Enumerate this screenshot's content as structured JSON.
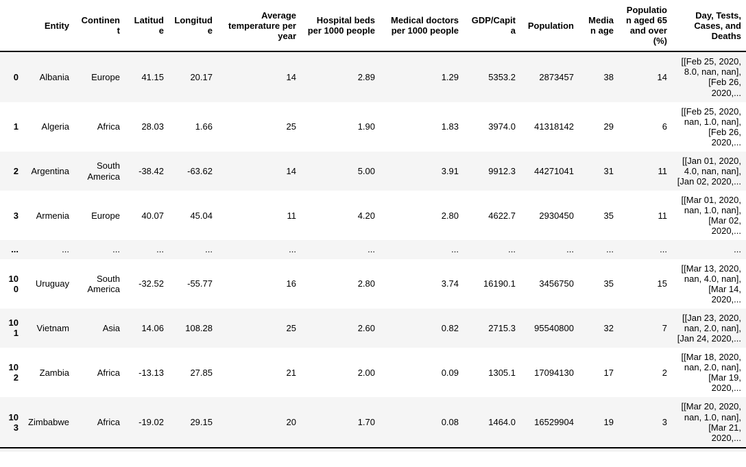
{
  "table": {
    "columns": [
      "",
      "Entity",
      "Continent",
      "Latitude",
      "Longitude",
      "Average temperature per year",
      "Hospital beds per 1000 people",
      "Medical doctors per 1000 people",
      "GDP/Capita",
      "Population",
      "Median age",
      "Population aged 65 and over (%)",
      "Day, Tests, Cases, and Deaths"
    ],
    "rows": [
      {
        "index": "0",
        "cells": [
          "Albania",
          "Europe",
          "41.15",
          "20.17",
          "14",
          "2.89",
          "1.29",
          "5353.2",
          "2873457",
          "38",
          "14",
          "[[Feb 25, 2020, 8.0, nan, nan], [Feb 26, 2020,..."
        ]
      },
      {
        "index": "1",
        "cells": [
          "Algeria",
          "Africa",
          "28.03",
          "1.66",
          "25",
          "1.90",
          "1.83",
          "3974.0",
          "41318142",
          "29",
          "6",
          "[[Feb 25, 2020, nan, 1.0, nan], [Feb 26, 2020,..."
        ]
      },
      {
        "index": "2",
        "cells": [
          "Argentina",
          "South America",
          "-38.42",
          "-63.62",
          "14",
          "5.00",
          "3.91",
          "9912.3",
          "44271041",
          "31",
          "11",
          "[[Jan 01, 2020, 4.0, nan, nan], [Jan 02, 2020,..."
        ]
      },
      {
        "index": "3",
        "cells": [
          "Armenia",
          "Europe",
          "40.07",
          "45.04",
          "11",
          "4.20",
          "2.80",
          "4622.7",
          "2930450",
          "35",
          "11",
          "[[Mar 01, 2020, nan, 1.0, nan], [Mar 02, 2020,..."
        ]
      },
      {
        "index": "...",
        "cells": [
          "...",
          "...",
          "...",
          "...",
          "...",
          "...",
          "...",
          "...",
          "...",
          "...",
          "...",
          "..."
        ]
      },
      {
        "index": "100",
        "cells": [
          "Uruguay",
          "South America",
          "-32.52",
          "-55.77",
          "16",
          "2.80",
          "3.74",
          "16190.1",
          "3456750",
          "35",
          "15",
          "[[Mar 13, 2020, nan, 4.0, nan], [Mar 14, 2020,..."
        ]
      },
      {
        "index": "101",
        "cells": [
          "Vietnam",
          "Asia",
          "14.06",
          "108.28",
          "25",
          "2.60",
          "0.82",
          "2715.3",
          "95540800",
          "32",
          "7",
          "[[Jan 23, 2020, nan, 2.0, nan], [Jan 24, 2020,..."
        ]
      },
      {
        "index": "102",
        "cells": [
          "Zambia",
          "Africa",
          "-13.13",
          "27.85",
          "21",
          "2.00",
          "0.09",
          "1305.1",
          "17094130",
          "17",
          "2",
          "[[Mar 18, 2020, nan, 2.0, nan], [Mar 19, 2020,..."
        ]
      },
      {
        "index": "103",
        "cells": [
          "Zimbabwe",
          "Africa",
          "-19.02",
          "29.15",
          "20",
          "1.70",
          "0.08",
          "1464.0",
          "16529904",
          "19",
          "3",
          "[[Mar 20, 2020, nan, 1.0, nan], [Mar 21, 2020,..."
        ]
      }
    ],
    "colors": {
      "stripe_background": "#f5f5f5",
      "header_border": "#000000",
      "text": "#000000"
    }
  }
}
